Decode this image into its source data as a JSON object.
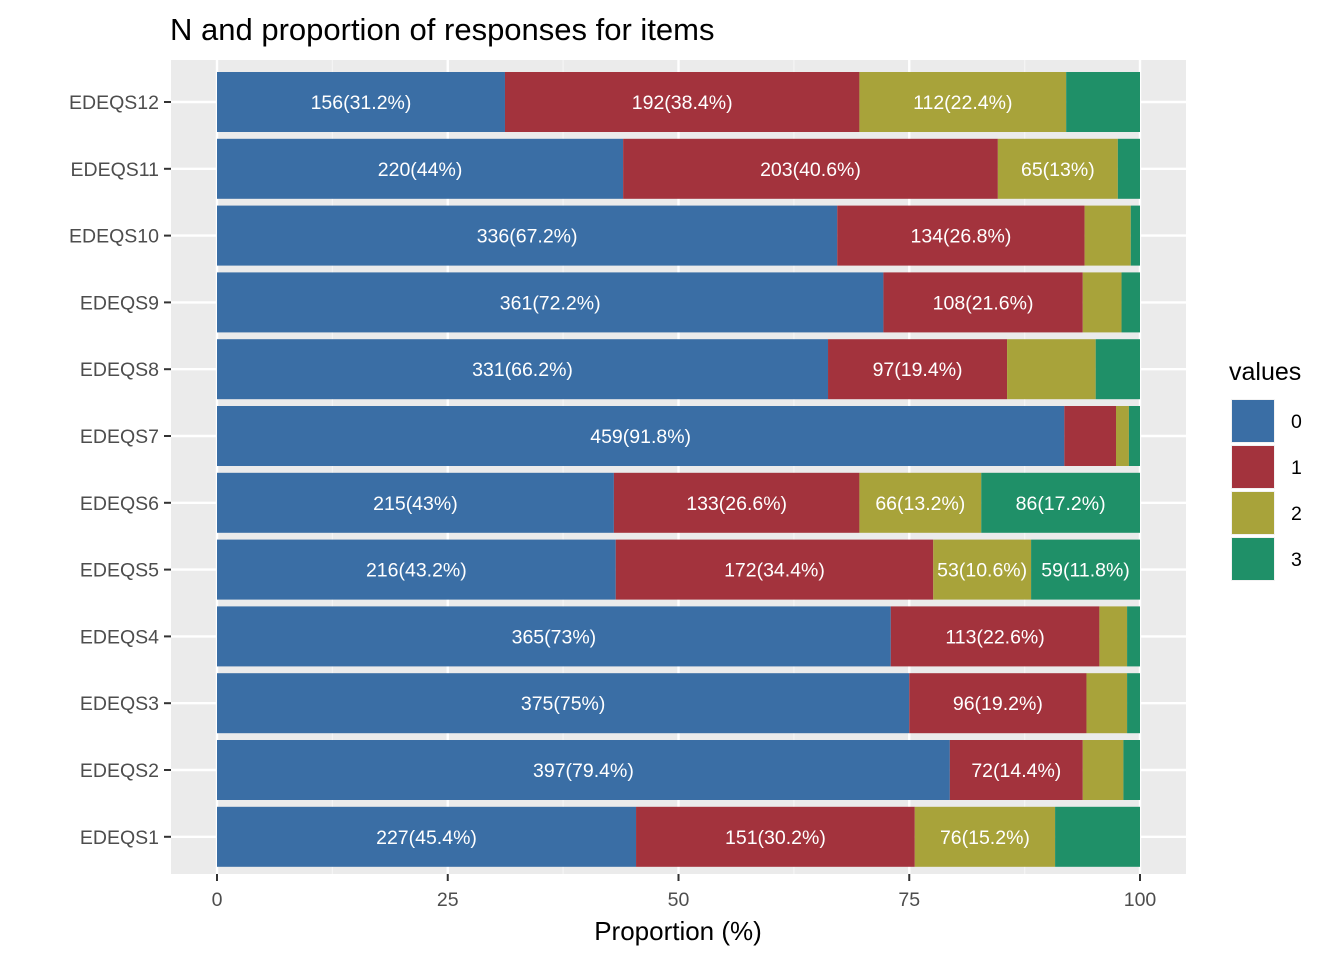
{
  "chart_data": {
    "type": "bar",
    "orientation": "horizontal",
    "stacked": true,
    "title": "N and proportion of responses for items",
    "xlabel": "Proportion (%)",
    "ylabel": "",
    "xlim": [
      0,
      100
    ],
    "xticks": [
      "0",
      "25",
      "50",
      "75",
      "100"
    ],
    "grid": true,
    "legend_position": "right",
    "legend_title": "values",
    "categories": [
      "EDEQS1",
      "EDEQS2",
      "EDEQS3",
      "EDEQS4",
      "EDEQS5",
      "EDEQS6",
      "EDEQS7",
      "EDEQS8",
      "EDEQS9",
      "EDEQS10",
      "EDEQS11",
      "EDEQS12"
    ],
    "series": [
      {
        "name": "0",
        "color": "#3A6EA5",
        "values": [
          45.4,
          79.4,
          75,
          73,
          43.2,
          43,
          91.8,
          66.2,
          72.2,
          67.2,
          44,
          31.2
        ],
        "labels": [
          "227(45.4%)",
          "397(79.4%)",
          "375(75%)",
          "365(73%)",
          "216(43.2%)",
          "215(43%)",
          "459(91.8%)",
          "331(66.2%)",
          "361(72.2%)",
          "336(67.2%)",
          "220(44%)",
          "156(31.2%)"
        ]
      },
      {
        "name": "1",
        "color": "#A3333D",
        "values": [
          30.2,
          14.4,
          19.2,
          22.6,
          34.4,
          26.6,
          5.6,
          19.4,
          21.6,
          26.8,
          40.6,
          38.4
        ],
        "labels": [
          "151(30.2%)",
          "72(14.4%)",
          "96(19.2%)",
          "113(22.6%)",
          "172(34.4%)",
          "133(26.6%)",
          "",
          "97(19.4%)",
          "108(21.6%)",
          "134(26.8%)",
          "203(40.6%)",
          "192(38.4%)"
        ]
      },
      {
        "name": "2",
        "color": "#A8A33A",
        "values": [
          15.2,
          4.4,
          4.4,
          3,
          10.6,
          13.2,
          1.4,
          9.6,
          4.2,
          5,
          13,
          22.4
        ],
        "labels": [
          "76(15.2%)",
          "",
          "",
          "",
          "53(10.6%)",
          "66(13.2%)",
          "",
          "",
          "",
          "",
          "65(13%)",
          "112(22.4%)"
        ]
      },
      {
        "name": "3",
        "color": "#1F9068",
        "values": [
          9.2,
          1.8,
          1.4,
          1.4,
          11.8,
          17.2,
          1.2,
          4.8,
          2,
          1,
          2.4,
          8
        ],
        "labels": [
          "",
          "",
          "",
          "",
          "59(11.8%)",
          "86(17.2%)",
          "",
          "",
          "",
          "",
          "",
          ""
        ]
      }
    ]
  }
}
